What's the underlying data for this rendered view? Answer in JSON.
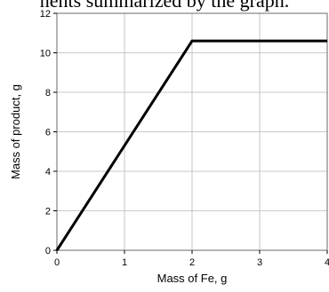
{
  "caption_fragment": "nents summarized by the graph.",
  "chart_data": {
    "type": "line",
    "xlabel": "Mass of Fe, g",
    "ylabel": "Mass of product, g",
    "xlim": [
      0,
      4
    ],
    "ylim": [
      0,
      12
    ],
    "x_ticks": [
      0,
      1,
      2,
      3,
      4
    ],
    "y_ticks": [
      0,
      2,
      4,
      6,
      8,
      10,
      12
    ],
    "grid": true,
    "series": [
      {
        "x": [
          0,
          2,
          4
        ],
        "y": [
          0,
          10.6,
          10.6
        ]
      }
    ]
  }
}
